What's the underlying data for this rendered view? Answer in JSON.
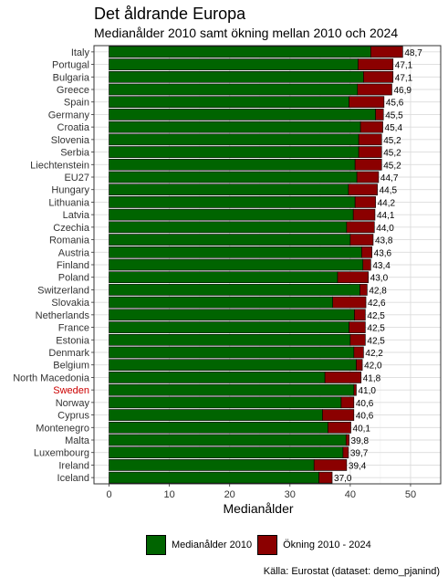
{
  "title": "Det åldrande Europa",
  "subtitle": "Medianålder 2010 samt ökning mellan 2010 och 2024",
  "caption": "Källa: Eurostat (dataset: demo_pjanind)",
  "chart_data": {
    "type": "bar",
    "orientation": "horizontal",
    "stacked": true,
    "title": "Det åldrande Europa",
    "subtitle": "Medianålder 2010 samt ökning mellan 2010 och 2024",
    "xlabel": "Medianålder",
    "ylabel": "",
    "xlim": [
      -2.5,
      55
    ],
    "xticks": [
      0,
      10,
      20,
      30,
      40,
      50
    ],
    "grid": true,
    "legend_position": "bottom",
    "highlight_category": "Sweden",
    "highlight_color": "#cc0000",
    "categories": [
      "Italy",
      "Portugal",
      "Bulgaria",
      "Greece",
      "Spain",
      "Germany",
      "Croatia",
      "Slovenia",
      "Serbia",
      "Liechtenstein",
      "EU27",
      "Hungary",
      "Lithuania",
      "Latvia",
      "Czechia",
      "Romania",
      "Austria",
      "Finland",
      "Poland",
      "Switzerland",
      "Slovakia",
      "Netherlands",
      "France",
      "Estonia",
      "Denmark",
      "Belgium",
      "North Macedonia",
      "Sweden",
      "Norway",
      "Cyprus",
      "Montenegro",
      "Malta",
      "Luxembourg",
      "Ireland",
      "Iceland"
    ],
    "series": [
      {
        "name": "Medianålder 2010",
        "color": "#006400",
        "values": [
          43.4,
          41.3,
          42.2,
          41.2,
          39.8,
          44.2,
          41.7,
          41.4,
          41.4,
          40.8,
          41.1,
          39.7,
          40.8,
          40.5,
          39.4,
          40.0,
          41.9,
          42.1,
          37.9,
          41.6,
          37.1,
          40.7,
          39.8,
          40.0,
          40.6,
          41.0,
          35.8,
          40.6,
          38.5,
          35.4,
          36.3,
          39.3,
          38.8,
          34.0,
          34.8
        ]
      },
      {
        "name": "Ökning 2010 - 2024",
        "color": "#8b0000",
        "values": [
          5.3,
          5.8,
          4.9,
          5.7,
          5.8,
          1.3,
          3.7,
          3.8,
          3.8,
          4.4,
          3.6,
          4.8,
          3.4,
          3.6,
          4.6,
          3.8,
          1.7,
          1.3,
          5.1,
          1.2,
          5.5,
          1.8,
          2.7,
          2.5,
          1.6,
          1.0,
          6.0,
          0.4,
          2.1,
          5.2,
          3.8,
          0.5,
          0.9,
          5.4,
          2.2
        ]
      }
    ],
    "data_labels": [
      "48,7",
      "47,1",
      "47,1",
      "46,9",
      "45,6",
      "45,5",
      "45,4",
      "45,2",
      "45,2",
      "45,2",
      "44,7",
      "44,5",
      "44,2",
      "44,1",
      "44,0",
      "43,8",
      "43,6",
      "43,4",
      "43,0",
      "42,8",
      "42,6",
      "42,5",
      "42,5",
      "42,5",
      "42,2",
      "42,0",
      "41,8",
      "41,0",
      "40,6",
      "40,6",
      "40,1",
      "39,8",
      "39,7",
      "39,4",
      "37,0"
    ]
  }
}
